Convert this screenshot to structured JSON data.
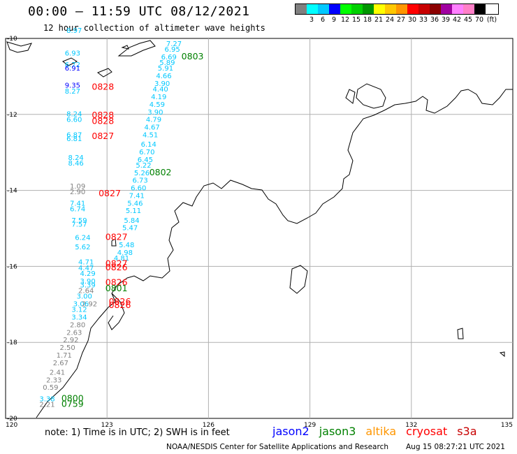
{
  "title": "00:00 – 11:59 UTC 08/12/2021",
  "subtitle": "12 hour collection of altimeter wave heights",
  "legend": {
    "unit": "(ft)",
    "colors": [
      "#808080",
      "#00ffff",
      "#00c8ff",
      "#0000ff",
      "#00ff00",
      "#00d000",
      "#009600",
      "#ffff00",
      "#ffc800",
      "#ff9600",
      "#ff0000",
      "#c80000",
      "#8b0000",
      "#a000a0",
      "#ff80ff",
      "#ff80c8",
      "#000000"
    ],
    "labels": [
      "",
      "3",
      "6",
      "9",
      "12",
      "15",
      "18",
      "21",
      "24",
      "27",
      "30",
      "33",
      "36",
      "39",
      "42",
      "45",
      "70"
    ]
  },
  "axes": {
    "x_ticks": [
      "120",
      "123",
      "126",
      "129",
      "132",
      "135"
    ],
    "y_ticks": [
      "-10",
      "-12",
      "-14",
      "-16",
      "-18",
      "-20"
    ]
  },
  "footer": {
    "note": "note: 1) Time is in UTC; 2) SWH is in feet",
    "satellites": [
      {
        "name": "jason2",
        "color": "#0000ff"
      },
      {
        "name": "jason3",
        "color": "#008000"
      },
      {
        "name": "altika",
        "color": "#ff9600"
      },
      {
        "name": "cryosat",
        "color": "#ff0000"
      },
      {
        "name": "s3a",
        "color": "#c80000"
      }
    ],
    "credit": "NOAA/NESDIS Center for Satellite Applications and Research",
    "timestamp": "Aug 15 08:27:21 UTC 2021"
  },
  "colors": {
    "cyan": "#00c8ff",
    "blue": "#0000ff",
    "gray": "#808080",
    "red": "#ff0000",
    "green": "#008000"
  },
  "wave_heights": [
    {
      "lon": 124.75,
      "lat": -10.2,
      "value": "7.27",
      "color": "cyan"
    },
    {
      "lon": 124.7,
      "lat": -10.35,
      "value": "6.95",
      "color": "cyan"
    },
    {
      "lon": 124.6,
      "lat": -10.55,
      "value": "6.69",
      "color": "cyan"
    },
    {
      "lon": 124.55,
      "lat": -10.7,
      "value": "5.89",
      "color": "cyan"
    },
    {
      "lon": 124.5,
      "lat": -10.85,
      "value": "5.91",
      "color": "cyan"
    },
    {
      "lon": 124.45,
      "lat": -11.05,
      "value": "4.66",
      "color": "cyan"
    },
    {
      "lon": 124.4,
      "lat": -11.25,
      "value": "3.90",
      "color": "cyan"
    },
    {
      "lon": 124.35,
      "lat": -11.4,
      "value": "4.40",
      "color": "cyan"
    },
    {
      "lon": 124.3,
      "lat": -11.6,
      "value": "4.19",
      "color": "cyan"
    },
    {
      "lon": 124.25,
      "lat": -11.8,
      "value": "4.59",
      "color": "cyan"
    },
    {
      "lon": 124.2,
      "lat": -12.0,
      "value": "3.90",
      "color": "cyan"
    },
    {
      "lon": 124.15,
      "lat": -12.2,
      "value": "4.79",
      "color": "cyan"
    },
    {
      "lon": 124.1,
      "lat": -12.4,
      "value": "4.67",
      "color": "cyan"
    },
    {
      "lon": 124.05,
      "lat": -12.6,
      "value": "4.51",
      "color": "cyan"
    },
    {
      "lon": 124.0,
      "lat": -12.85,
      "value": "6.14",
      "color": "cyan"
    },
    {
      "lon": 123.95,
      "lat": -13.05,
      "value": "6.70",
      "color": "cyan"
    },
    {
      "lon": 123.9,
      "lat": -13.25,
      "value": "6.45",
      "color": "cyan"
    },
    {
      "lon": 123.85,
      "lat": -13.4,
      "value": "5.22",
      "color": "cyan"
    },
    {
      "lon": 123.8,
      "lat": -13.6,
      "value": "5.26",
      "color": "cyan"
    },
    {
      "lon": 123.75,
      "lat": -13.8,
      "value": "6.73",
      "color": "cyan"
    },
    {
      "lon": 123.7,
      "lat": -14.0,
      "value": "6.60",
      "color": "cyan"
    },
    {
      "lon": 123.65,
      "lat": -14.2,
      "value": "7.41",
      "color": "cyan"
    },
    {
      "lon": 123.6,
      "lat": -14.4,
      "value": "5.46",
      "color": "cyan"
    },
    {
      "lon": 123.55,
      "lat": -14.6,
      "value": "5.11",
      "color": "cyan"
    },
    {
      "lon": 123.5,
      "lat": -14.85,
      "value": "5.84",
      "color": "cyan"
    },
    {
      "lon": 123.45,
      "lat": -15.05,
      "value": "5.47",
      "color": "cyan"
    },
    {
      "lon": 123.35,
      "lat": -15.5,
      "value": "5.48",
      "color": "cyan"
    },
    {
      "lon": 123.3,
      "lat": -15.7,
      "value": "4.98",
      "color": "cyan"
    },
    {
      "lon": 123.2,
      "lat": -15.85,
      "value": "4.81",
      "color": "cyan"
    },
    {
      "lon": 121.8,
      "lat": -9.85,
      "value": "8.97",
      "color": "cyan"
    },
    {
      "lon": 121.75,
      "lat": -10.45,
      "value": "6.93",
      "color": "cyan"
    },
    {
      "lon": 121.75,
      "lat": -10.75,
      "value": "6.72",
      "color": "cyan"
    },
    {
      "lon": 121.75,
      "lat": -10.85,
      "value": "6.91",
      "color": "blue"
    },
    {
      "lon": 121.75,
      "lat": -11.3,
      "value": "9.35",
      "color": "blue"
    },
    {
      "lon": 121.75,
      "lat": -11.45,
      "value": "8.27",
      "color": "cyan"
    },
    {
      "lon": 121.8,
      "lat": -12.05,
      "value": "8.24",
      "color": "cyan"
    },
    {
      "lon": 121.8,
      "lat": -12.2,
      "value": "6.60",
      "color": "cyan"
    },
    {
      "lon": 121.8,
      "lat": -12.6,
      "value": "6.87",
      "color": "cyan"
    },
    {
      "lon": 121.8,
      "lat": -12.7,
      "value": "6.81",
      "color": "cyan"
    },
    {
      "lon": 121.85,
      "lat": -13.2,
      "value": "8.24",
      "color": "cyan"
    },
    {
      "lon": 121.85,
      "lat": -13.35,
      "value": "8.46",
      "color": "cyan"
    },
    {
      "lon": 121.9,
      "lat": -13.95,
      "value": "1.09",
      "color": "gray"
    },
    {
      "lon": 121.9,
      "lat": -14.1,
      "value": "2.90",
      "color": "gray"
    },
    {
      "lon": 121.9,
      "lat": -14.4,
      "value": "7.41",
      "color": "cyan"
    },
    {
      "lon": 121.9,
      "lat": -14.55,
      "value": "6.74",
      "color": "cyan"
    },
    {
      "lon": 121.95,
      "lat": -14.85,
      "value": "7.59",
      "color": "cyan"
    },
    {
      "lon": 121.95,
      "lat": -14.95,
      "value": "7.57",
      "color": "cyan"
    },
    {
      "lon": 122.05,
      "lat": -15.3,
      "value": "6.24",
      "color": "cyan"
    },
    {
      "lon": 122.05,
      "lat": -15.55,
      "value": "5.62",
      "color": "cyan"
    },
    {
      "lon": 122.15,
      "lat": -15.95,
      "value": "4.71",
      "color": "cyan"
    },
    {
      "lon": 122.15,
      "lat": -16.1,
      "value": "4.47",
      "color": "cyan"
    },
    {
      "lon": 122.2,
      "lat": -16.25,
      "value": "4.29",
      "color": "cyan"
    },
    {
      "lon": 122.2,
      "lat": -16.45,
      "value": "3.90",
      "color": "cyan"
    },
    {
      "lon": 122.2,
      "lat": -16.55,
      "value": "3.39",
      "color": "cyan"
    },
    {
      "lon": 122.15,
      "lat": -16.7,
      "value": "2.64",
      "color": "gray"
    },
    {
      "lon": 122.1,
      "lat": -16.85,
      "value": "3.00",
      "color": "cyan"
    },
    {
      "lon": 122.0,
      "lat": -17.05,
      "value": "3.06",
      "color": "cyan"
    },
    {
      "lon": 122.25,
      "lat": -17.05,
      "value": "2.92",
      "color": "gray"
    },
    {
      "lon": 121.95,
      "lat": -17.2,
      "value": "3.12",
      "color": "cyan"
    },
    {
      "lon": 121.95,
      "lat": -17.4,
      "value": "3.34",
      "color": "cyan"
    },
    {
      "lon": 121.9,
      "lat": -17.6,
      "value": "2.80",
      "color": "gray"
    },
    {
      "lon": 121.8,
      "lat": -17.8,
      "value": "2.63",
      "color": "gray"
    },
    {
      "lon": 121.7,
      "lat": -18.0,
      "value": "2.92",
      "color": "gray"
    },
    {
      "lon": 121.6,
      "lat": -18.2,
      "value": "2.50",
      "color": "gray"
    },
    {
      "lon": 121.5,
      "lat": -18.4,
      "value": "1.71",
      "color": "gray"
    },
    {
      "lon": 121.4,
      "lat": -18.6,
      "value": "2.67",
      "color": "gray"
    },
    {
      "lon": 121.3,
      "lat": -18.85,
      "value": "2.41",
      "color": "gray"
    },
    {
      "lon": 121.2,
      "lat": -19.05,
      "value": "2.33",
      "color": "gray"
    },
    {
      "lon": 121.1,
      "lat": -19.25,
      "value": "0.59",
      "color": "gray"
    },
    {
      "lon": 121.0,
      "lat": -19.55,
      "value": "3.38",
      "color": "cyan"
    },
    {
      "lon": 121.0,
      "lat": -19.7,
      "value": "2.21",
      "color": "gray"
    }
  ],
  "pass_ids": [
    {
      "lon": 125.2,
      "lat": -10.55,
      "value": "0803",
      "color": "green"
    },
    {
      "lon": 122.55,
      "lat": -11.35,
      "value": "0828",
      "color": "red"
    },
    {
      "lon": 122.55,
      "lat": -12.1,
      "value": "0828",
      "color": "red"
    },
    {
      "lon": 122.55,
      "lat": -12.25,
      "value": "0828",
      "color": "red"
    },
    {
      "lon": 122.55,
      "lat": -12.65,
      "value": "0827",
      "color": "red"
    },
    {
      "lon": 124.25,
      "lat": -13.6,
      "value": "0802",
      "color": "green"
    },
    {
      "lon": 122.75,
      "lat": -14.15,
      "value": "0827",
      "color": "red"
    },
    {
      "lon": 122.95,
      "lat": -15.3,
      "value": "0827",
      "color": "red"
    },
    {
      "lon": 122.95,
      "lat": -16.0,
      "value": "0827",
      "color": "red"
    },
    {
      "lon": 122.95,
      "lat": -16.1,
      "value": "0826",
      "color": "red"
    },
    {
      "lon": 122.95,
      "lat": -16.5,
      "value": "0826",
      "color": "red"
    },
    {
      "lon": 122.95,
      "lat": -16.65,
      "value": "0801",
      "color": "green"
    },
    {
      "lon": 123.05,
      "lat": -17.0,
      "value": "0826",
      "color": "red"
    },
    {
      "lon": 123.05,
      "lat": -17.1,
      "value": "0826",
      "color": "red"
    },
    {
      "lon": 121.65,
      "lat": -19.55,
      "value": "0800",
      "color": "green"
    },
    {
      "lon": 121.65,
      "lat": -19.7,
      "value": "0759",
      "color": "green"
    }
  ]
}
